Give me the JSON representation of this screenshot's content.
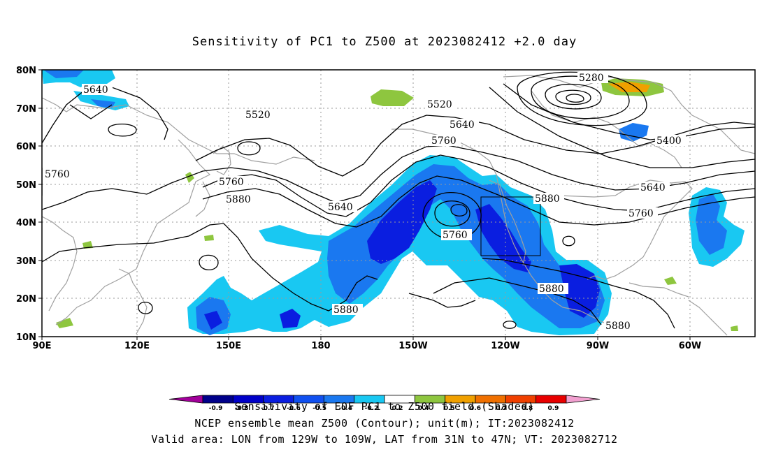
{
  "title": "Sensitivity of PC1 to Z500 at 2023082412 +2.0 day",
  "map": {
    "lon_labels": [
      "90E",
      "120E",
      "150E",
      "180",
      "150W",
      "120W",
      "90W",
      "60W"
    ],
    "lat_labels": [
      "80N",
      "70N",
      "60N",
      "50N",
      "40N",
      "30N",
      "20N",
      "10N"
    ],
    "contour_labels": [
      "5640",
      "5520",
      "5760",
      "5760",
      "5880",
      "5640",
      "5760",
      "5520",
      "5640",
      "5760",
      "5280",
      "5400",
      "5640",
      "5760",
      "5880",
      "5880",
      "5880",
      "5880"
    ],
    "colors": {
      "strong_neg": "#0a1ee0",
      "mid_neg": "#1a78f0",
      "weak_neg": "#19c8f2",
      "pos_green": "#8ec63f",
      "pos_orange": "#f0a000",
      "contour": "#000000",
      "coast": "#a0a0a0"
    }
  },
  "colorbar": {
    "labels": [
      "-0.9",
      "-0.8",
      "-0.7",
      "-0.6",
      "-0.5",
      "-0.4",
      "-0.2",
      "0.2",
      "0.4",
      "0.5",
      "0.6",
      "0.7",
      "0.8",
      "0.9"
    ],
    "colors": [
      "#a2009a",
      "#00008a",
      "#0000c8",
      "#0a1ee0",
      "#1050f0",
      "#1a78f0",
      "#19c8f2",
      "#ffffff",
      "#8ec63f",
      "#f0a000",
      "#f07000",
      "#f04000",
      "#e80000",
      "#f2a0d0"
    ]
  },
  "footer": {
    "line1": "Sensitivity of EOF PC1 to Z500 field (Shaded)",
    "line2": "NCEP ensemble mean Z500 (Contour); unit(m); IT:2023082412",
    "line3": "Valid area: LON from 129W to 109W, LAT from 31N to 47N; VT: 2023082712"
  }
}
